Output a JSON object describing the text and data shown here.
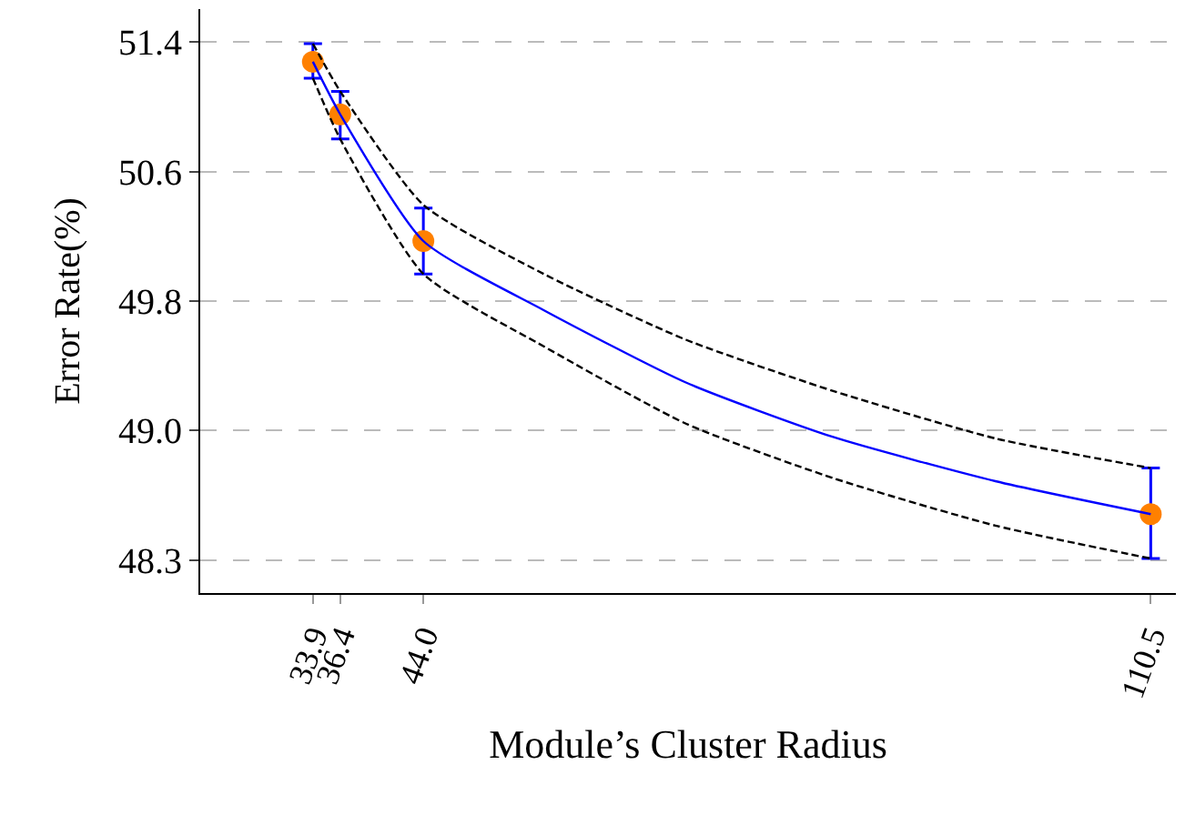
{
  "chart_data": {
    "type": "scatter",
    "xlabel": "Module’s Cluster Radius",
    "ylabel": "Error Rate(%)",
    "x": [
      33.9,
      36.4,
      44.0,
      110.5
    ],
    "xlim": [
      23.6,
      112.8
    ],
    "xticks": [
      33.9,
      36.4,
      {
        "value": 44.0,
        "label": "44.0"
      },
      110.5
    ],
    "ylim": [
      48.05,
      51.6
    ],
    "yticks": [
      {
        "value": 48.25,
        "label": "48.3"
      },
      {
        "value": 49.0375,
        "label": "49.0"
      },
      {
        "value": 49.825,
        "label": "49.8"
      },
      {
        "value": 50.6125,
        "label": "50.6"
      },
      {
        "value": 51.4,
        "label": "51.4"
      }
    ],
    "grid": "y",
    "series": [
      {
        "type": "line",
        "color": "#0000ff",
        "line_style": "solid",
        "marker": "none",
        "x": [
          33.9,
          36.4,
          44.0,
          55.0,
          68.0,
          81.4,
          96.3,
          110.5
        ],
        "values": [
          51.28,
          50.96,
          50.19,
          49.77,
          49.33,
          49.0,
          48.73,
          48.53
        ]
      },
      {
        "type": "line",
        "color": "#000000",
        "line_style": "dashed",
        "marker": "none",
        "x": [
          33.9,
          36.4,
          44.0,
          55.0,
          68.0,
          81.4,
          96.3,
          110.5
        ],
        "values": [
          51.39,
          51.1,
          50.41,
          49.99,
          49.59,
          49.28,
          48.99,
          48.81
        ]
      },
      {
        "type": "line",
        "color": "#000000",
        "line_style": "dashed",
        "marker": "none",
        "x": [
          33.9,
          36.4,
          44.0,
          55.0,
          68.0,
          81.4,
          96.3,
          110.5
        ],
        "values": [
          51.18,
          50.81,
          49.99,
          49.55,
          49.08,
          48.75,
          48.46,
          48.26
        ]
      },
      {
        "color": "#ff8000",
        "marker": "circle",
        "values": [
          51.28,
          50.96,
          50.19,
          48.53
        ],
        "errors": [
          [
            51.18,
            51.39
          ],
          [
            50.81,
            51.1
          ],
          [
            49.99,
            50.39
          ],
          [
            48.26,
            48.81
          ]
        ]
      }
    ]
  }
}
